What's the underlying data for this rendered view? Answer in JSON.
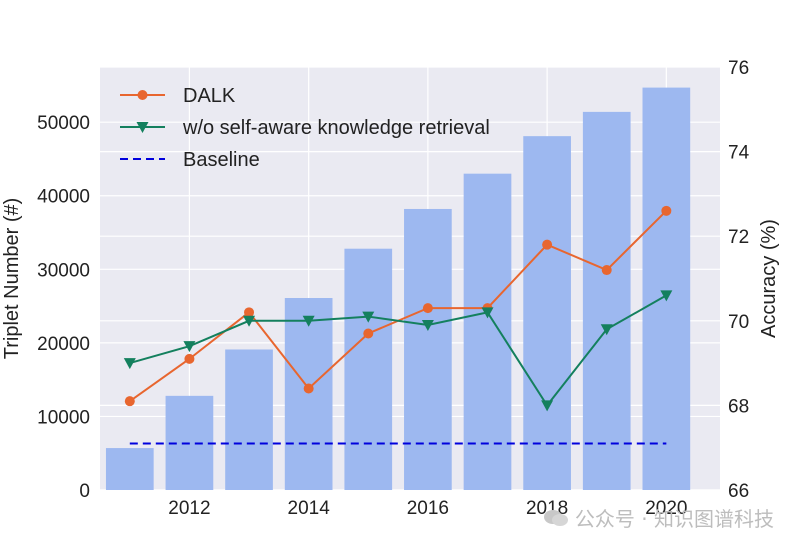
{
  "chart_data": {
    "type": "bar+line",
    "x": [
      2011,
      2012,
      2013,
      2014,
      2015,
      2016,
      2017,
      2018,
      2019,
      2020
    ],
    "bars": {
      "name": "",
      "values": [
        5700,
        12800,
        19100,
        26100,
        32800,
        38200,
        43000,
        48100,
        51400,
        54700
      ],
      "color": "#9db8f0"
    },
    "series": [
      {
        "name": "DALK",
        "values": [
          68.1,
          69.1,
          70.2,
          68.4,
          69.7,
          70.3,
          70.3,
          71.8,
          71.2,
          72.6
        ],
        "color": "#e8662f",
        "marker": "circle"
      },
      {
        "name": "w/o self-aware knowledge retrieval",
        "values": [
          69.0,
          69.4,
          70.0,
          70.0,
          70.1,
          69.9,
          70.2,
          68.0,
          69.8,
          70.6
        ],
        "color": "#14805e",
        "marker": "triangle-down"
      },
      {
        "name": "Baseline",
        "values": [
          67.1,
          67.1,
          67.1,
          67.1,
          67.1,
          67.1,
          67.1,
          67.1,
          67.1,
          67.1
        ],
        "color": "#0000dd",
        "style": "dashed"
      }
    ],
    "xticks": [
      "2012",
      "2014",
      "2016",
      "2018",
      "2020"
    ],
    "yticks_left": [
      "0",
      "10000",
      "20000",
      "30000",
      "40000",
      "50000"
    ],
    "yticks_right": [
      "66",
      "68",
      "70",
      "72",
      "74",
      "76"
    ],
    "ylabel_left": "Triplet Number (#)",
    "ylabel_right": "Accuracy (%)",
    "ylim_left": [
      0,
      57500
    ],
    "ylim_right": [
      66,
      76
    ],
    "xlim": [
      2010.5,
      2020.9
    ],
    "grid": true,
    "legend_position": "top-left"
  },
  "watermark": "公众号 · 知识图谱科技"
}
